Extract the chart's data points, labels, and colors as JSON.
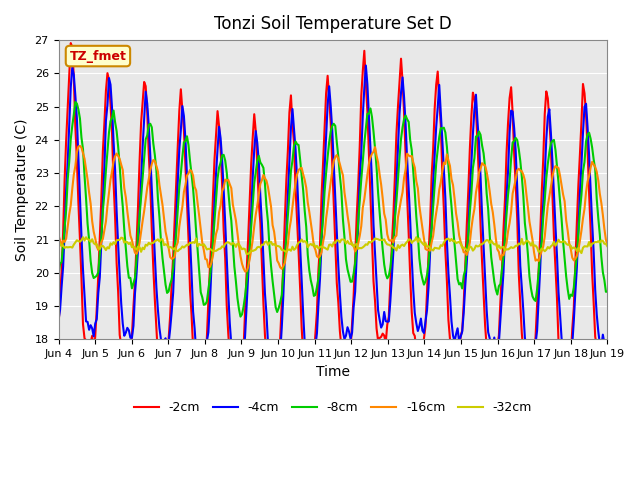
{
  "title": "Tonzi Soil Temperature Set D",
  "xlabel": "Time",
  "ylabel": "Soil Temperature (C)",
  "ylim": [
    18.0,
    27.0
  ],
  "yticks": [
    18.0,
    19.0,
    20.0,
    21.0,
    22.0,
    23.0,
    24.0,
    25.0,
    26.0,
    27.0
  ],
  "xtick_labels": [
    "Jun 4",
    "Jun 5",
    "Jun 6",
    "Jun 7",
    "Jun 8",
    "Jun 9",
    "Jun 10",
    "Jun 11",
    "Jun 12",
    "Jun 13",
    "Jun 14",
    "Jun 15",
    "Jun 16",
    "Jun 17",
    "Jun 18",
    "Jun 19"
  ],
  "colors": {
    "-2cm": "#ff0000",
    "-4cm": "#0000ff",
    "-8cm": "#00cc00",
    "-16cm": "#ff8800",
    "-32cm": "#cccc00"
  },
  "legend_labels": [
    "-2cm",
    "-4cm",
    "-8cm",
    "-16cm",
    "-32cm"
  ],
  "annotation_text": "TZ_fmet",
  "annotation_color": "#cc0000",
  "annotation_bg": "#ffffcc",
  "annotation_border": "#cc8800",
  "bg_color": "#e8e8e8",
  "linewidth": 1.5,
  "n_points": 360,
  "mean_base": 22.0,
  "slow_trend": [
    0.8,
    0.4,
    0.1,
    -0.2,
    -0.8,
    -1.2,
    -0.9,
    -0.3,
    0.3,
    0.5,
    0.2,
    -0.1,
    -0.3,
    -0.5,
    -0.4,
    -0.2
  ]
}
